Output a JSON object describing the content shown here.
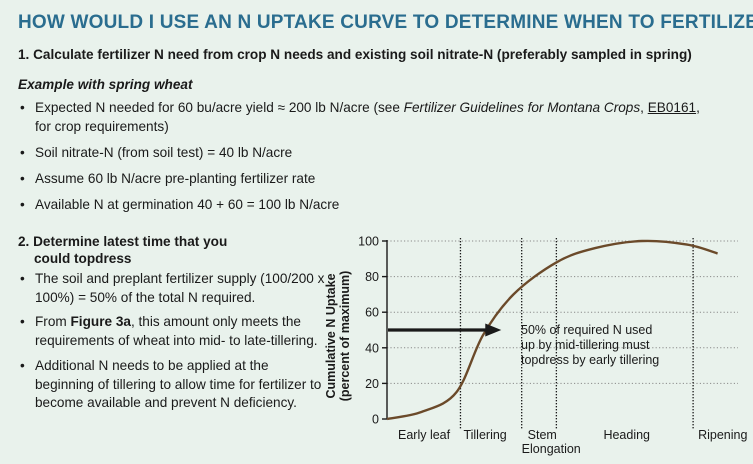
{
  "title": "HOW WOULD I USE AN N UPTAKE CURVE TO DETERMINE WHEN TO FERTILIZE?",
  "step1": {
    "heading": "1. Calculate fertilizer N need from crop N needs and existing soil nitrate-N (preferably sampled in spring)",
    "example": "Example with spring wheat",
    "bullets": {
      "b1_pre": "Expected N needed for 60 bu/acre yield ≈ 200 lb N/acre (see ",
      "b1_italic": "Fertilizer Guidelines for Montana Crops",
      "b1_mid": ", ",
      "b1_link": "EB0161",
      "b1_post": ",",
      "b1_line2": "for crop requirements)",
      "b2": "Soil nitrate-N (from soil test) = 40 lb N/acre",
      "b3": "Assume 60 lb N/acre pre-planting fertilizer rate",
      "b4": "Available N at germination 40 + 60 = 100 lb N/acre"
    }
  },
  "step2": {
    "heading_line1": "2. Determine latest time that you",
    "heading_line2": "could topdress",
    "bullets": {
      "b1": "The soil and preplant fertilizer supply (100/200 x 100%) = 50% of the total N required.",
      "b2_pre": "From ",
      "b2_bold": "Figure 3a",
      "b2_post": ", this amount only meets the requirements of wheat into mid- to late-tillering.",
      "b3": "Additional N needs to be applied at the beginning of tillering to allow time for fertilizer to become available and prevent N deficiency."
    }
  },
  "chart_data": {
    "type": "line",
    "ylabel_line1": "Cumulative N Uptake",
    "ylabel_line2": "(percent of maximum)",
    "ylim": [
      0,
      100
    ],
    "yticks": [
      "100",
      "80",
      "60",
      "40",
      "20",
      "0"
    ],
    "ytick_values": [
      100,
      80,
      60,
      40,
      20,
      0
    ],
    "stages": [
      {
        "label": "Early leaf",
        "label2": ""
      },
      {
        "label": "Tillering",
        "label2": ""
      },
      {
        "label": "Stem",
        "label2": "Elongation"
      },
      {
        "label": "Heading",
        "label2": ""
      },
      {
        "label": "Ripening",
        "label2": ""
      }
    ],
    "stage_boundaries": [
      0.36,
      0.66,
      0.83,
      1.5
    ],
    "curve": {
      "x": [
        0,
        0.17,
        0.34,
        0.47,
        0.62,
        0.83,
        1.02,
        1.25,
        1.47,
        1.62
      ],
      "y": [
        0,
        4,
        15,
        47,
        70,
        88,
        96,
        100,
        98,
        93
      ]
    },
    "arrow_y": 50,
    "annotation": [
      "50% of required N used",
      "up by mid-tillering must",
      "topdress by early tillering"
    ],
    "colors": {
      "curve": "#6b4a2a",
      "axis": "#1a1a1a",
      "arrow": "#1a1a1a"
    }
  }
}
